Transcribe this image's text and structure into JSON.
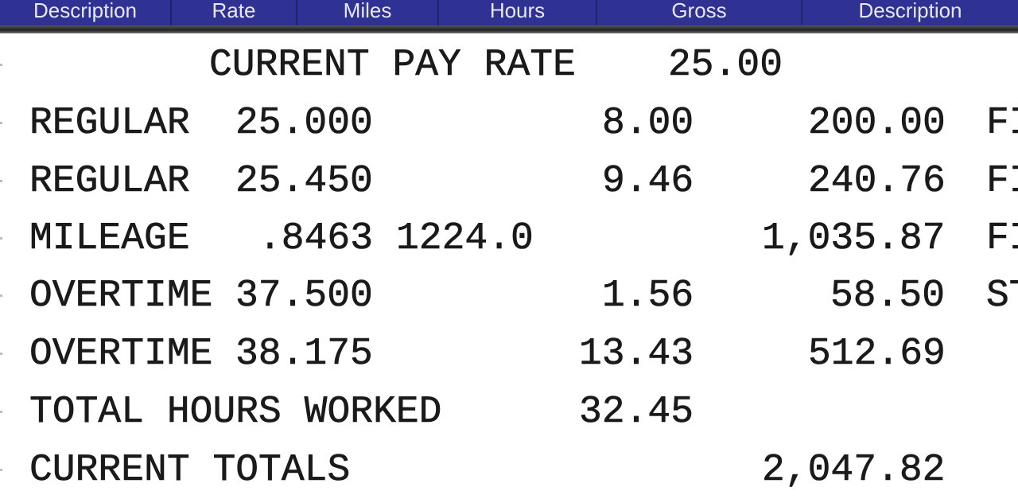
{
  "header": {
    "columns": [
      "Description",
      "Rate",
      "Miles",
      "Hours",
      "Gross",
      "Description"
    ]
  },
  "colors": {
    "header_bg": "#2f3193",
    "header_text": "#e8e8f4"
  },
  "rows": [
    {
      "description": "CURRENT PAY RATE",
      "value": "25.00"
    },
    {
      "description": "REGULAR",
      "rate": "25.000",
      "hours": "8.00",
      "gross": "200.00",
      "deduction": "FI"
    },
    {
      "description": "REGULAR",
      "rate": "25.450",
      "hours": "9.46",
      "gross": "240.76",
      "deduction": "FI"
    },
    {
      "description": "MILEAGE",
      "rate": ".8463",
      "miles": "1224.0",
      "gross": "1,035.87",
      "deduction": "FI"
    },
    {
      "description": "OVERTIME",
      "rate": "37.500",
      "hours": "1.56",
      "gross": "58.50",
      "deduction": "ST"
    },
    {
      "description": "OVERTIME",
      "rate": "38.175",
      "hours": "13.43",
      "gross": "512.69"
    },
    {
      "description": "TOTAL HOURS WORKED",
      "hours": "32.45"
    },
    {
      "description": "CURRENT TOTALS",
      "gross": "2,047.82"
    }
  ]
}
